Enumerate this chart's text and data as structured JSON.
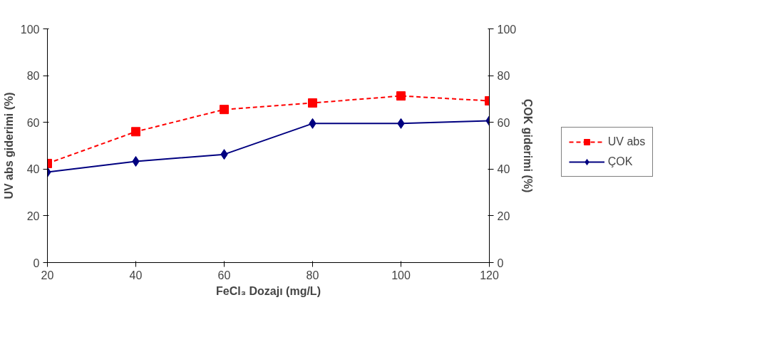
{
  "chart_data": {
    "type": "line",
    "xlabel": "FeCl₃ Dozajı (mg/L)",
    "ylabel": "UV abs giderimi (%)",
    "y2label": "ÇOK giderimi (%)",
    "x": [
      20,
      40,
      60,
      80,
      100,
      120
    ],
    "xlim": [
      20,
      120
    ],
    "xticks": [
      20,
      40,
      60,
      80,
      100,
      120
    ],
    "ylim": [
      0,
      100
    ],
    "yticks": [
      0,
      20,
      40,
      60,
      80,
      100
    ],
    "y2lim": [
      0,
      100
    ],
    "y2ticks": [
      0,
      20,
      40,
      60,
      80,
      100
    ],
    "grid": false,
    "legend": "right",
    "series": [
      {
        "name": "UV abs",
        "color": "#ff0000",
        "marker": "square",
        "line_style": "dashed",
        "values": [
          42.4,
          56,
          65.5,
          68.3,
          71.3,
          69.2
        ]
      },
      {
        "name": "ÇOK",
        "color": "#000080",
        "marker": "diamond",
        "line_style": "solid",
        "values": [
          38.7,
          43.3,
          46.3,
          59.5,
          59.5,
          60.7
        ]
      }
    ]
  }
}
